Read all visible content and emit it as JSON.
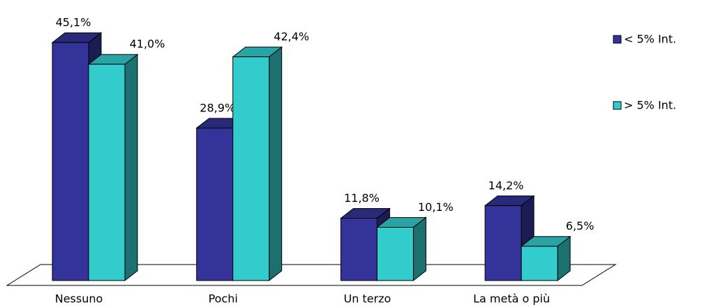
{
  "chart_data": {
    "type": "bar3d",
    "categories": [
      "Nessuno",
      "Pochi",
      "Un terzo",
      "La metà o più"
    ],
    "series": [
      {
        "name": "< 5% Int.",
        "color": "#333399",
        "values": [
          45.1,
          28.9,
          11.8,
          14.2
        ],
        "value_labels": [
          "45,1%",
          "28,9%",
          "11,8%",
          "14,2%"
        ]
      },
      {
        "name": "> 5% Int.",
        "color": "#33cccc",
        "values": [
          41.0,
          42.4,
          10.1,
          6.5
        ],
        "value_labels": [
          "41,0%",
          "42,4%",
          "10,1%",
          "6,5%"
        ]
      }
    ],
    "legend": "right"
  }
}
